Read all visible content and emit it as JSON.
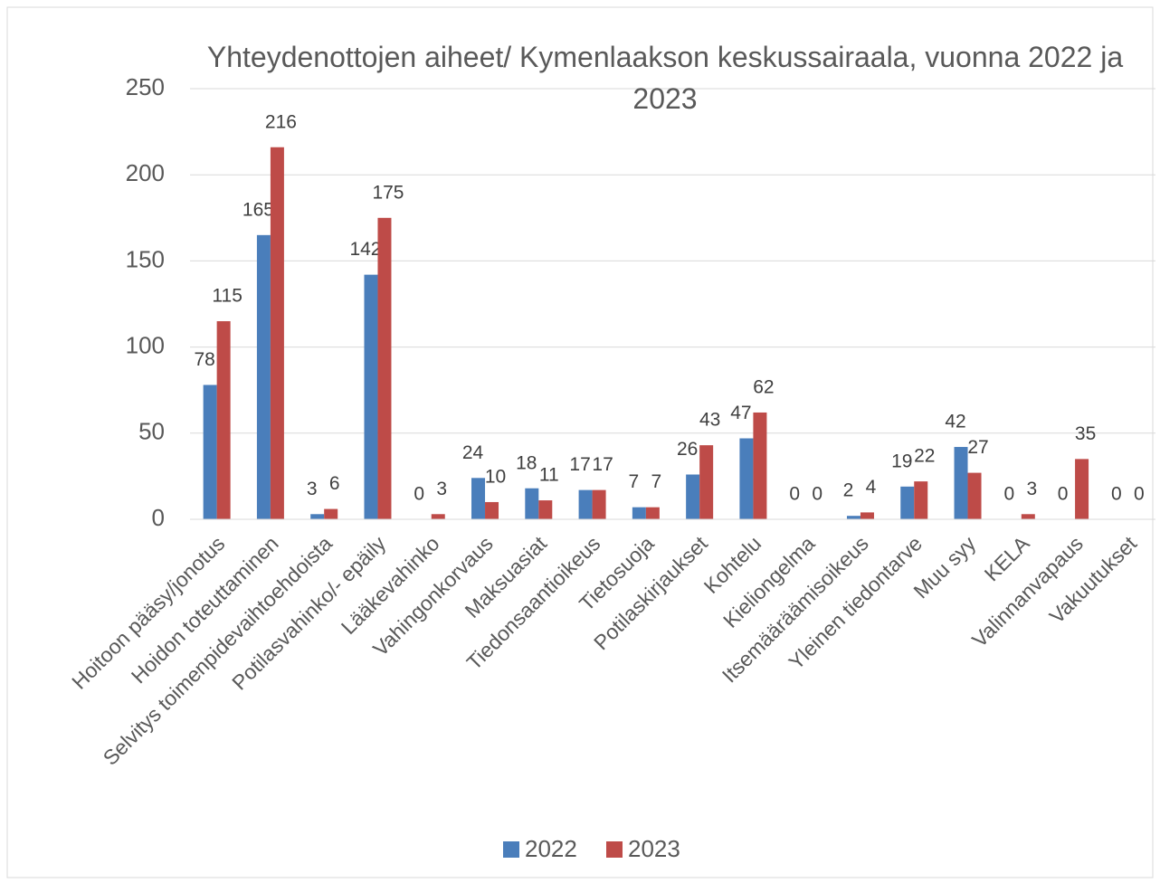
{
  "chart_data": {
    "type": "bar",
    "title": "Yhteydenottojen aiheet/ Kymenlaakson keskussairaala, vuonna 2022 ja 2023",
    "categories": [
      "Hoitoon pääsy/jonotus",
      "Hoidon toteuttaminen",
      "Selvitys toimenpidevaihtoehdoista",
      "Potilasvahinko/- epäily",
      "Lääkevahinko",
      "Vahingonkorvaus",
      "Maksuasiat",
      "Tiedonsaantioikeus",
      "Tietosuoja",
      "Potilaskirjaukset",
      "Kohtelu",
      "Kieliongelma",
      "Itsemääräämisoikeus",
      "Yleinen tiedontarve",
      "Muu syy",
      "KELA",
      "Valinnanvapaus",
      "Vakuutukset"
    ],
    "series": [
      {
        "name": "2022",
        "color": "#4a7ebb",
        "values": [
          78,
          165,
          3,
          142,
          0,
          24,
          18,
          17,
          7,
          26,
          47,
          0,
          2,
          19,
          42,
          0,
          0,
          0
        ]
      },
      {
        "name": "2023",
        "color": "#be4b48",
        "values": [
          115,
          216,
          6,
          175,
          3,
          10,
          11,
          17,
          7,
          43,
          62,
          0,
          4,
          22,
          27,
          3,
          35,
          0
        ]
      }
    ],
    "ylim": [
      0,
      250
    ],
    "yticks": [
      0,
      50,
      100,
      150,
      200,
      250
    ],
    "grid": true,
    "legend": "bottom"
  }
}
